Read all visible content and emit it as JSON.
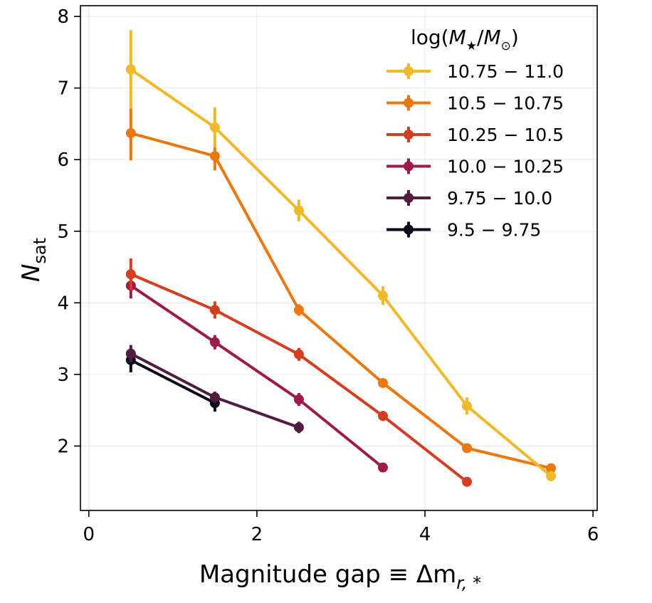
{
  "chart_data": {
    "type": "line",
    "title": "",
    "xlabel": "Magnitude gap ≡ Δm",
    "xlabel_sub": "r, *",
    "ylabel": "N",
    "ylabel_sub": "sat",
    "xlim": [
      -0.1,
      6.05
    ],
    "ylim": [
      1.1,
      8.15
    ],
    "xticks": [
      0,
      2,
      4,
      6
    ],
    "yticks": [
      2,
      3,
      4,
      5,
      6,
      7,
      8
    ],
    "xtick_labels": [
      "0",
      "2",
      "4",
      "6"
    ],
    "ytick_labels": [
      "2",
      "3",
      "4",
      "5",
      "6",
      "7",
      "8"
    ],
    "grid": true,
    "legend": {
      "placement": "upper-right",
      "title_prefix": "log(",
      "title_m": "M",
      "title_star": "★",
      "title_slash": "/",
      "title_m2": "M",
      "title_sun": "⊙",
      "title_suffix": ")"
    },
    "series": [
      {
        "name": "10.75 − 11.0",
        "color": "#f0b928",
        "x": [
          0.5,
          1.5,
          2.5,
          3.5,
          4.5,
          5.5
        ],
        "y": [
          7.26,
          6.45,
          5.29,
          4.1,
          2.56,
          1.58
        ],
        "err": [
          0.55,
          0.28,
          0.15,
          0.13,
          0.12,
          0.07
        ]
      },
      {
        "name": "10.5 − 10.75",
        "color": "#ea780f",
        "x": [
          0.5,
          1.5,
          2.5,
          3.5,
          4.5,
          5.5
        ],
        "y": [
          6.37,
          6.05,
          3.9,
          2.88,
          1.97,
          1.69
        ],
        "err": [
          0.38,
          0.2,
          0.08,
          0.06,
          0.04,
          0.06
        ]
      },
      {
        "name": "10.25 − 10.5",
        "color": "#d43e22",
        "x": [
          0.5,
          1.5,
          2.5,
          3.5,
          4.5
        ],
        "y": [
          4.4,
          3.9,
          3.28,
          2.42,
          1.5
        ],
        "err": [
          0.22,
          0.12,
          0.09,
          0.07,
          0.03
        ]
      },
      {
        "name": "10.0 − 10.25",
        "color": "#9e1a4a",
        "x": [
          0.5,
          1.5,
          2.5,
          3.5
        ],
        "y": [
          4.24,
          3.45,
          2.65,
          1.7
        ],
        "err": [
          0.18,
          0.1,
          0.09,
          0.03
        ]
      },
      {
        "name": "9.75 − 10.0",
        "color": "#521c41",
        "x": [
          0.5,
          1.5,
          2.5
        ],
        "y": [
          3.29,
          2.68,
          2.26
        ],
        "err": [
          0.12,
          0.08,
          0.08
        ]
      },
      {
        "name": "9.5 − 9.75",
        "color": "#0b0a18",
        "x": [
          0.5,
          1.5
        ],
        "y": [
          3.2,
          2.6
        ],
        "err": [
          0.17,
          0.12
        ]
      }
    ]
  }
}
